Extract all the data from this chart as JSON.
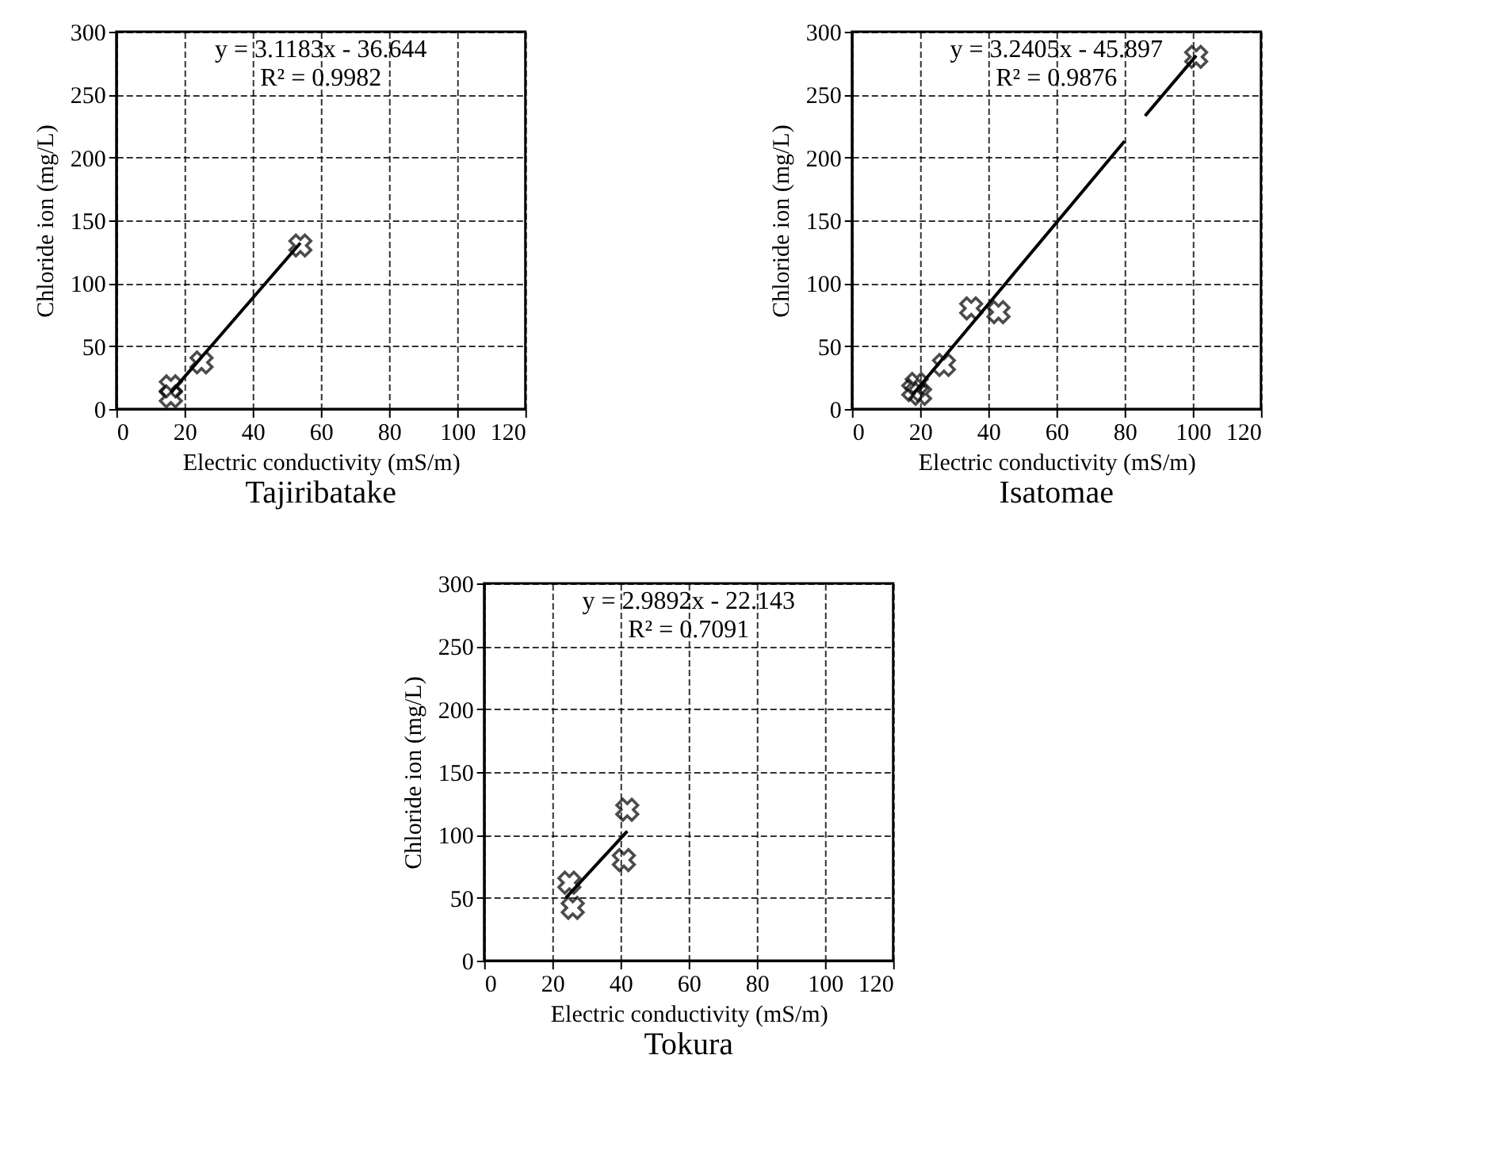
{
  "chart_data": [
    {
      "type": "scatter",
      "title": "Tajiribatake",
      "xlabel": "Electric conductivity (mS/m)",
      "ylabel": "Chloride ion (mg/L)",
      "annotations": [
        "y = 3.1183x - 36.644",
        "R² = 0.9982"
      ],
      "xlim": [
        0,
        120
      ],
      "xticks": [
        0,
        20,
        40,
        60,
        80,
        100,
        120
      ],
      "ylim": [
        0,
        300
      ],
      "yticks": [
        0,
        50,
        100,
        150,
        200,
        250,
        300
      ],
      "grid": true,
      "series": [
        {
          "color": "#000000",
          "marker": "cross",
          "x": [
            16,
            16,
            25,
            54
          ],
          "values": [
            10,
            18,
            37,
            130
          ]
        },
        {
          "type": "line",
          "color": "#000000",
          "x": [
            16,
            54
          ],
          "values": [
            13,
            132
          ]
        }
      ]
    },
    {
      "type": "scatter",
      "title": "Isatomae",
      "xlabel": "Electric conductivity (mS/m)",
      "ylabel": "Chloride ion (mg/L)",
      "annotations": [
        "y = 3.2405x - 45.897",
        "R² = 0.9876"
      ],
      "xlim": [
        0,
        120
      ],
      "xticks": [
        0,
        20,
        40,
        60,
        80,
        100,
        120
      ],
      "ylim": [
        0,
        300
      ],
      "yticks": [
        0,
        50,
        100,
        150,
        200,
        250,
        300
      ],
      "grid": true,
      "series": [
        {
          "color": "#000000",
          "marker": "cross",
          "x": [
            18,
            19,
            20,
            27,
            35,
            43,
            101
          ],
          "values": [
            15,
            20,
            12,
            35,
            80,
            77,
            280
          ]
        },
        {
          "type": "line",
          "color": "#000000",
          "x": [
            18,
            80,
            83,
            86,
            101
          ],
          "values": [
            12,
            213,
            null,
            233,
            281
          ]
        }
      ]
    },
    {
      "type": "scatter",
      "title": "Tokura",
      "xlabel": "Electric conductivity (mS/m)",
      "ylabel": "Chloride ion (mg/L)",
      "annotations": [
        "y = 2.9892x - 22.143",
        "R² = 0.7091"
      ],
      "xlim": [
        0,
        120
      ],
      "xticks": [
        0,
        20,
        40,
        60,
        80,
        100,
        120
      ],
      "ylim": [
        0,
        300
      ],
      "yticks": [
        0,
        50,
        100,
        150,
        200,
        250,
        300
      ],
      "grid": true,
      "series": [
        {
          "color": "#000000",
          "marker": "cross",
          "x": [
            25,
            26,
            41,
            42
          ],
          "values": [
            62,
            42,
            80,
            120
          ]
        },
        {
          "type": "line",
          "color": "#000000",
          "x": [
            24,
            42
          ],
          "values": [
            50,
            103
          ]
        }
      ]
    }
  ]
}
